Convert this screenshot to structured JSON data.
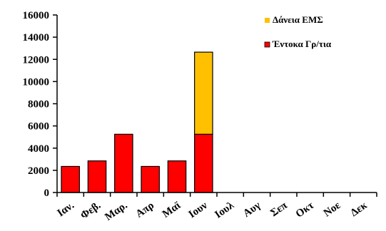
{
  "chart_data": {
    "type": "bar",
    "stacked": true,
    "categories": [
      "Ιαν.",
      "Φεβ.",
      "Μαρ.",
      "Απρ",
      "Μαϊ",
      "Ιουν",
      "Ιουλ",
      "Αυγ",
      "Σεπ",
      "Οκτ",
      "Νοε",
      "Δεκ"
    ],
    "series": [
      {
        "name": "Έντοκα Γρ/τια",
        "color": "#ff0000",
        "values": [
          2350,
          2850,
          5250,
          2350,
          2850,
          5250,
          0,
          0,
          0,
          0,
          0,
          0
        ]
      },
      {
        "name": "Δάνεια ΕΜΣ",
        "color": "#ffc000",
        "values": [
          0,
          0,
          0,
          0,
          0,
          7400,
          0,
          0,
          0,
          0,
          0,
          0
        ]
      }
    ],
    "ylim": [
      0,
      16000
    ],
    "yticks": [
      0,
      2000,
      4000,
      6000,
      8000,
      10000,
      12000,
      14000,
      16000
    ],
    "title": "",
    "xlabel": "",
    "ylabel": "",
    "legend_position": "top-right",
    "grid": false
  }
}
